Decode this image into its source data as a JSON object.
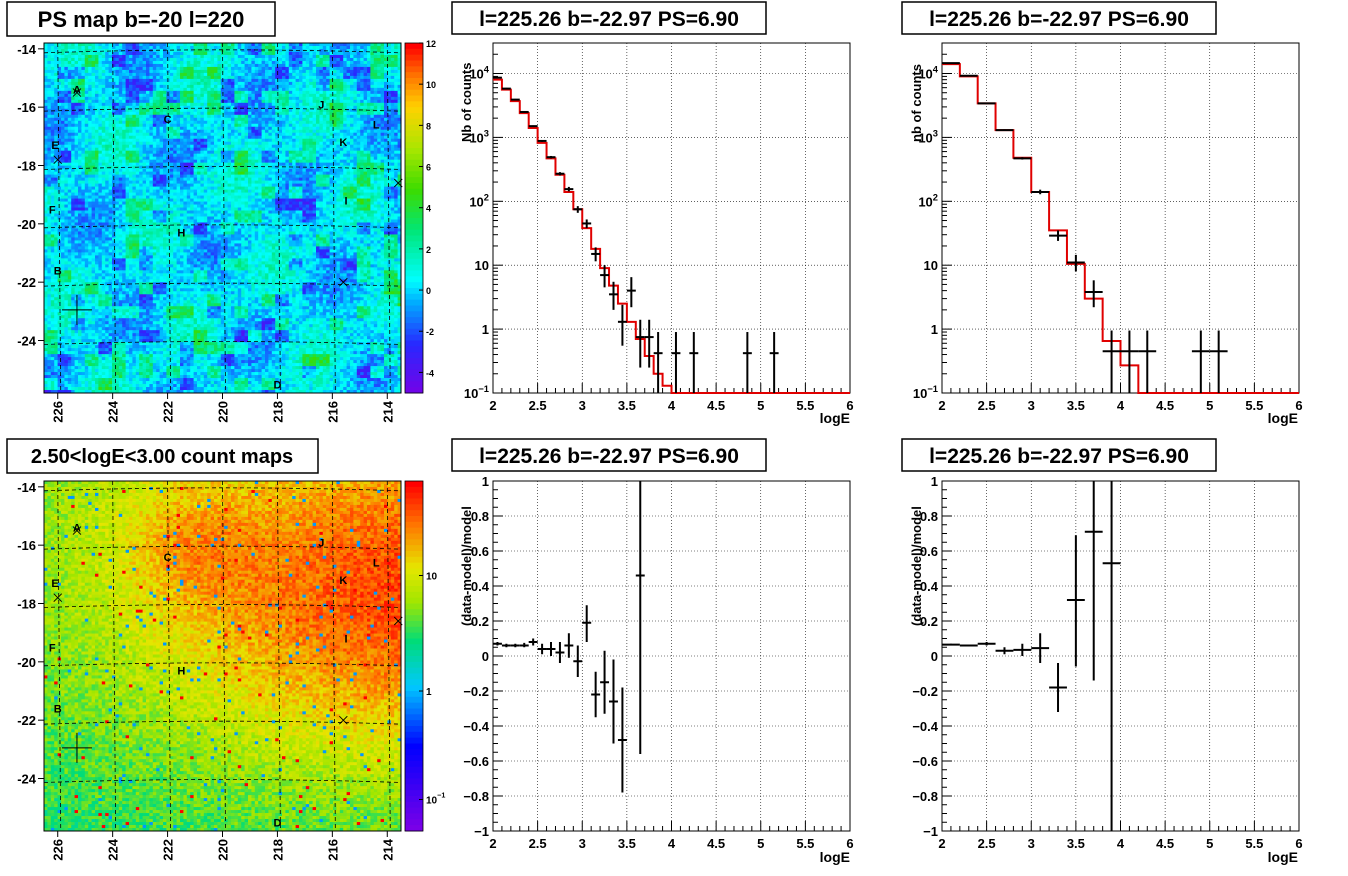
{
  "chart_data": [
    {
      "id": "ps_map",
      "type": "heatmap",
      "title": "PS map b=-20 l=220",
      "x_ticks": [
        "226",
        "224",
        "222",
        "220",
        "218",
        "216",
        "214"
      ],
      "y_ticks": [
        "-14",
        "-16",
        "-18",
        "-20",
        "-22",
        "-24"
      ],
      "xlim": [
        226.5,
        213.5
      ],
      "ylim": [
        -25.8,
        -13.8
      ],
      "colorbar_ticks": [
        "12",
        "10",
        "8",
        "6",
        "4",
        "2",
        "0",
        "-2",
        "-4"
      ],
      "colorbar_range": [
        -5,
        12
      ],
      "sources": [
        {
          "label": "A",
          "l": 225.3,
          "b": -15.4
        },
        {
          "label": "J",
          "l": 216.4,
          "b": -15.9
        },
        {
          "label": "C",
          "l": 222.0,
          "b": -16.4
        },
        {
          "label": "L",
          "l": 214.4,
          "b": -16.6
        },
        {
          "label": "E",
          "l": 226.1,
          "b": -17.3
        },
        {
          "label": "K",
          "l": 215.6,
          "b": -17.2
        },
        {
          "label": "I",
          "l": 215.5,
          "b": -19.2
        },
        {
          "label": "F",
          "l": 226.2,
          "b": -19.5
        },
        {
          "label": "H",
          "l": 221.5,
          "b": -20.3
        },
        {
          "label": "B",
          "l": 226.0,
          "b": -21.6
        },
        {
          "label": "D",
          "l": 218.0,
          "b": -25.5
        }
      ],
      "markers": [
        {
          "l": 225.3,
          "b": -15.5,
          "kind": "x"
        },
        {
          "l": 226.0,
          "b": -17.8,
          "kind": "x"
        },
        {
          "l": 213.6,
          "b": -18.6,
          "kind": "x"
        },
        {
          "l": 215.6,
          "b": -22.0,
          "kind": "x"
        },
        {
          "l": 225.3,
          "b": -22.95,
          "kind": "plus"
        }
      ]
    },
    {
      "id": "spectrum_1",
      "type": "histogram",
      "title": "l=225.26 b=-22.97 PS=6.90",
      "xlabel": "logE",
      "ylabel": "Nb of counts",
      "xlim": [
        2,
        6
      ],
      "ylim": [
        0.1,
        30000
      ],
      "yscale": "log",
      "x_ticks": [
        "2",
        "2.5",
        "3",
        "3.5",
        "4",
        "4.5",
        "5",
        "5.5",
        "6"
      ],
      "y_ticks": [
        "10^-1",
        "1",
        "10",
        "10^2",
        "10^3",
        "10^4"
      ],
      "grid": true,
      "model": {
        "edges": [
          2,
          2.1,
          2.2,
          2.3,
          2.4,
          2.5,
          2.6,
          2.7,
          2.8,
          2.9,
          3.0,
          3.1,
          3.2,
          3.3,
          3.4,
          3.5,
          3.6,
          3.7,
          3.8,
          3.9,
          4.0,
          4.1,
          6.0
        ],
        "values": [
          8000,
          5600,
          3700,
          2400,
          1400,
          820,
          470,
          260,
          140,
          75,
          38,
          18,
          9,
          4.8,
          2.5,
          1.3,
          0.7,
          0.38,
          0.2,
          0.13,
          0.1,
          0.1
        ]
      },
      "data": [
        {
          "x": 2.05,
          "y": 8600,
          "xerr": 0.05,
          "yl": 8400,
          "yh": 8800
        },
        {
          "x": 2.15,
          "y": 5800,
          "xerr": 0.05,
          "yl": 5650,
          "yh": 5950
        },
        {
          "x": 2.25,
          "y": 3900,
          "xerr": 0.05,
          "yl": 3800,
          "yh": 4000
        },
        {
          "x": 2.35,
          "y": 2500,
          "xerr": 0.05,
          "yl": 2440,
          "yh": 2560
        },
        {
          "x": 2.45,
          "y": 1500,
          "xerr": 0.05,
          "yl": 1460,
          "yh": 1540
        },
        {
          "x": 2.55,
          "y": 880,
          "xerr": 0.05,
          "yl": 850,
          "yh": 910
        },
        {
          "x": 2.65,
          "y": 490,
          "xerr": 0.05,
          "yl": 468,
          "yh": 512
        },
        {
          "x": 2.75,
          "y": 270,
          "xerr": 0.05,
          "yl": 254,
          "yh": 286
        },
        {
          "x": 2.85,
          "y": 155,
          "xerr": 0.05,
          "yl": 143,
          "yh": 168
        },
        {
          "x": 2.95,
          "y": 75,
          "xerr": 0.05,
          "yl": 66,
          "yh": 84
        },
        {
          "x": 3.05,
          "y": 45,
          "xerr": 0.05,
          "yl": 38,
          "yh": 52
        },
        {
          "x": 3.15,
          "y": 15,
          "xerr": 0.05,
          "yl": 11.5,
          "yh": 19
        },
        {
          "x": 3.25,
          "y": 7,
          "xerr": 0.05,
          "yl": 4.5,
          "yh": 10
        },
        {
          "x": 3.35,
          "y": 3.5,
          "xerr": 0.05,
          "yl": 2,
          "yh": 5.5
        },
        {
          "x": 3.45,
          "y": 1.3,
          "xerr": 0.05,
          "yl": 0.55,
          "yh": 2.4
        },
        {
          "x": 3.55,
          "y": 4,
          "xerr": 0.05,
          "yl": 2.2,
          "yh": 6.5
        },
        {
          "x": 3.65,
          "y": 0.75,
          "xerr": 0.05,
          "yl": 0.25,
          "yh": 1.4
        },
        {
          "x": 3.75,
          "y": 0.75,
          "xerr": 0.05,
          "yl": 0.25,
          "yh": 1.4
        },
        {
          "x": 3.85,
          "y": 0.42,
          "xerr": 0.05,
          "yl": 0.1,
          "yh": 0.9
        },
        {
          "x": 4.05,
          "y": 0.42,
          "xerr": 0.05,
          "yl": 0.1,
          "yh": 0.9
        },
        {
          "x": 4.25,
          "y": 0.42,
          "xerr": 0.05,
          "yl": 0.1,
          "yh": 0.9
        },
        {
          "x": 4.85,
          "y": 0.42,
          "xerr": 0.05,
          "yl": 0.1,
          "yh": 0.9
        },
        {
          "x": 5.15,
          "y": 0.42,
          "xerr": 0.05,
          "yl": 0.1,
          "yh": 0.9
        }
      ]
    },
    {
      "id": "spectrum_2",
      "type": "histogram",
      "title": "l=225.26 b=-22.97 PS=6.90",
      "xlabel": "logE",
      "ylabel": "nb of counts",
      "xlim": [
        2,
        6
      ],
      "ylim": [
        0.1,
        30000
      ],
      "yscale": "log",
      "x_ticks": [
        "2",
        "2.5",
        "3",
        "3.5",
        "4",
        "4.5",
        "5",
        "5.5",
        "6"
      ],
      "y_ticks": [
        "10^-1",
        "1",
        "10",
        "10^2",
        "10^3",
        "10^4"
      ],
      "grid": true,
      "model": {
        "edges": [
          2,
          2.2,
          2.4,
          2.6,
          2.8,
          3.0,
          3.2,
          3.4,
          3.6,
          3.8,
          4.0,
          4.2,
          6.0
        ],
        "values": [
          14000,
          9000,
          3400,
          1300,
          480,
          140,
          35,
          10.5,
          3.0,
          0.65,
          0.27,
          0.1
        ]
      },
      "data": [
        {
          "x": 2.1,
          "y": 14500,
          "xerr": 0.1,
          "yl": 14300,
          "yh": 14700
        },
        {
          "x": 2.3,
          "y": 9200,
          "xerr": 0.1,
          "yl": 9050,
          "yh": 9350
        },
        {
          "x": 2.5,
          "y": 3400,
          "xerr": 0.1,
          "yl": 3330,
          "yh": 3470
        },
        {
          "x": 2.7,
          "y": 1300,
          "xerr": 0.1,
          "yl": 1265,
          "yh": 1335
        },
        {
          "x": 2.9,
          "y": 470,
          "xerr": 0.1,
          "yl": 450,
          "yh": 490
        },
        {
          "x": 3.1,
          "y": 140,
          "xerr": 0.1,
          "yl": 129,
          "yh": 152
        },
        {
          "x": 3.3,
          "y": 29,
          "xerr": 0.1,
          "yl": 24,
          "yh": 35
        },
        {
          "x": 3.5,
          "y": 11,
          "xerr": 0.1,
          "yl": 8,
          "yh": 14.5
        },
        {
          "x": 3.7,
          "y": 3.8,
          "xerr": 0.1,
          "yl": 2.2,
          "yh": 5.8
        },
        {
          "x": 3.9,
          "y": 0.45,
          "xerr": 0.1,
          "yl": 0.1,
          "yh": 0.95
        },
        {
          "x": 4.1,
          "y": 0.45,
          "xerr": 0.1,
          "yl": 0.1,
          "yh": 0.95
        },
        {
          "x": 4.3,
          "y": 0.45,
          "xerr": 0.1,
          "yl": 0.1,
          "yh": 0.95
        },
        {
          "x": 4.9,
          "y": 0.45,
          "xerr": 0.1,
          "yl": 0.1,
          "yh": 0.95
        },
        {
          "x": 5.1,
          "y": 0.45,
          "xerr": 0.1,
          "yl": 0.1,
          "yh": 0.95
        }
      ]
    },
    {
      "id": "count_map",
      "type": "heatmap",
      "title": "2.50<logE<3.00 count maps",
      "x_ticks": [
        "226",
        "224",
        "222",
        "220",
        "218",
        "216",
        "214"
      ],
      "y_ticks": [
        "-14",
        "-16",
        "-18",
        "-20",
        "-22",
        "-24"
      ],
      "xlim": [
        226.5,
        213.5
      ],
      "ylim": [
        -25.8,
        -13.8
      ],
      "colorbar_ticks": [
        "10",
        "1",
        "10^-1"
      ],
      "colorbar_scale": "log",
      "sources": [
        {
          "label": "A",
          "l": 225.3,
          "b": -15.4
        },
        {
          "label": "J",
          "l": 216.4,
          "b": -15.9
        },
        {
          "label": "C",
          "l": 222.0,
          "b": -16.4
        },
        {
          "label": "L",
          "l": 214.4,
          "b": -16.6
        },
        {
          "label": "E",
          "l": 226.1,
          "b": -17.3
        },
        {
          "label": "K",
          "l": 215.6,
          "b": -17.2
        },
        {
          "label": "I",
          "l": 215.5,
          "b": -19.2
        },
        {
          "label": "F",
          "l": 226.2,
          "b": -19.5
        },
        {
          "label": "H",
          "l": 221.5,
          "b": -20.3
        },
        {
          "label": "B",
          "l": 226.0,
          "b": -21.6
        },
        {
          "label": "D",
          "l": 218.0,
          "b": -25.5
        }
      ],
      "markers": [
        {
          "l": 225.3,
          "b": -15.5,
          "kind": "x"
        },
        {
          "l": 226.0,
          "b": -17.8,
          "kind": "x"
        },
        {
          "l": 213.6,
          "b": -18.6,
          "kind": "x"
        },
        {
          "l": 215.6,
          "b": -22.0,
          "kind": "x"
        },
        {
          "l": 225.3,
          "b": -22.95,
          "kind": "plus"
        }
      ]
    },
    {
      "id": "residual_1",
      "type": "scatter",
      "title": "l=225.26 b=-22.97 PS=6.90",
      "xlabel": "logE",
      "ylabel": "(data-model)/model",
      "xlim": [
        2,
        6
      ],
      "ylim": [
        -1,
        1
      ],
      "x_ticks": [
        "2",
        "2.5",
        "3",
        "3.5",
        "4",
        "4.5",
        "5",
        "5.5",
        "6"
      ],
      "y_ticks": [
        "−1",
        "−0.8",
        "−0.6",
        "−0.4",
        "−0.2",
        "0",
        "0.2",
        "0.4",
        "0.6",
        "0.8",
        "1"
      ],
      "grid": true,
      "data": [
        {
          "x": 2.05,
          "y": 0.07,
          "xerr": 0.05,
          "yl": 0.06,
          "yh": 0.08
        },
        {
          "x": 2.15,
          "y": 0.06,
          "xerr": 0.05,
          "yl": 0.05,
          "yh": 0.07
        },
        {
          "x": 2.25,
          "y": 0.06,
          "xerr": 0.05,
          "yl": 0.05,
          "yh": 0.07
        },
        {
          "x": 2.35,
          "y": 0.06,
          "xerr": 0.05,
          "yl": 0.05,
          "yh": 0.075
        },
        {
          "x": 2.45,
          "y": 0.08,
          "xerr": 0.05,
          "yl": 0.06,
          "yh": 0.1
        },
        {
          "x": 2.55,
          "y": 0.04,
          "xerr": 0.05,
          "yl": 0.01,
          "yh": 0.07
        },
        {
          "x": 2.65,
          "y": 0.04,
          "xerr": 0.05,
          "yl": 0.0,
          "yh": 0.08
        },
        {
          "x": 2.75,
          "y": 0.02,
          "xerr": 0.05,
          "yl": -0.04,
          "yh": 0.08
        },
        {
          "x": 2.85,
          "y": 0.06,
          "xerr": 0.05,
          "yl": -0.01,
          "yh": 0.13
        },
        {
          "x": 2.95,
          "y": -0.03,
          "xerr": 0.05,
          "yl": -0.12,
          "yh": 0.06
        },
        {
          "x": 3.05,
          "y": 0.19,
          "xerr": 0.05,
          "yl": 0.08,
          "yh": 0.29
        },
        {
          "x": 3.15,
          "y": -0.22,
          "xerr": 0.05,
          "yl": -0.35,
          "yh": -0.09
        },
        {
          "x": 3.25,
          "y": -0.15,
          "xerr": 0.05,
          "yl": -0.33,
          "yh": 0.03
        },
        {
          "x": 3.35,
          "y": -0.26,
          "xerr": 0.05,
          "yl": -0.5,
          "yh": -0.02
        },
        {
          "x": 3.45,
          "y": -0.48,
          "xerr": 0.05,
          "yl": -0.78,
          "yh": -0.18
        },
        {
          "x": 3.65,
          "y": 0.46,
          "xerr": 0.05,
          "yl": -0.56,
          "yh": 1.0
        }
      ]
    },
    {
      "id": "residual_2",
      "type": "scatter",
      "title": "l=225.26 b=-22.97 PS=6.90",
      "xlabel": "logE",
      "ylabel": "(data-model)/model",
      "xlim": [
        2,
        6
      ],
      "ylim": [
        -1,
        1
      ],
      "x_ticks": [
        "2",
        "2.5",
        "3",
        "3.5",
        "4",
        "4.5",
        "5",
        "5.5",
        "6"
      ],
      "y_ticks": [
        "−1",
        "−0.8",
        "−0.6",
        "−0.4",
        "−0.2",
        "0",
        "0.2",
        "0.4",
        "0.6",
        "0.8",
        "1"
      ],
      "grid": true,
      "data": [
        {
          "x": 2.1,
          "y": 0.065,
          "xerr": 0.1,
          "yl": 0.06,
          "yh": 0.07
        },
        {
          "x": 2.3,
          "y": 0.06,
          "xerr": 0.1,
          "yl": 0.055,
          "yh": 0.065
        },
        {
          "x": 2.5,
          "y": 0.07,
          "xerr": 0.1,
          "yl": 0.06,
          "yh": 0.08
        },
        {
          "x": 2.7,
          "y": 0.03,
          "xerr": 0.1,
          "yl": 0.01,
          "yh": 0.05
        },
        {
          "x": 2.9,
          "y": 0.035,
          "xerr": 0.1,
          "yl": 0.0,
          "yh": 0.07
        },
        {
          "x": 3.1,
          "y": 0.045,
          "xerr": 0.1,
          "yl": -0.04,
          "yh": 0.13
        },
        {
          "x": 3.3,
          "y": -0.18,
          "xerr": 0.1,
          "yl": -0.32,
          "yh": -0.04
        },
        {
          "x": 3.5,
          "y": 0.32,
          "xerr": 0.1,
          "yl": -0.06,
          "yh": 0.69
        },
        {
          "x": 3.7,
          "y": 0.71,
          "xerr": 0.1,
          "yl": -0.14,
          "yh": 1.0
        },
        {
          "x": 3.9,
          "y": 0.53,
          "xerr": 0.1,
          "yl": -1.0,
          "yh": 1.0
        }
      ]
    }
  ]
}
